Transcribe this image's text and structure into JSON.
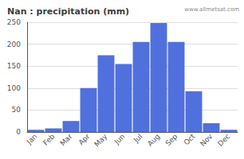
{
  "chart_data": {
    "type": "bar",
    "title": "Nan : precipitation (mm)",
    "categories": [
      "Jan",
      "Feb",
      "Mar",
      "Apr",
      "May",
      "Jun",
      "Jul",
      "Aug",
      "Sep",
      "Oct",
      "Nov",
      "Dec"
    ],
    "values": [
      5,
      8,
      25,
      100,
      175,
      155,
      205,
      248,
      205,
      93,
      20,
      5
    ],
    "ylim": [
      0,
      250
    ],
    "yticks": [
      0,
      50,
      100,
      150,
      200,
      250
    ],
    "grid": true,
    "annotation": "www.allmetsat.com"
  }
}
